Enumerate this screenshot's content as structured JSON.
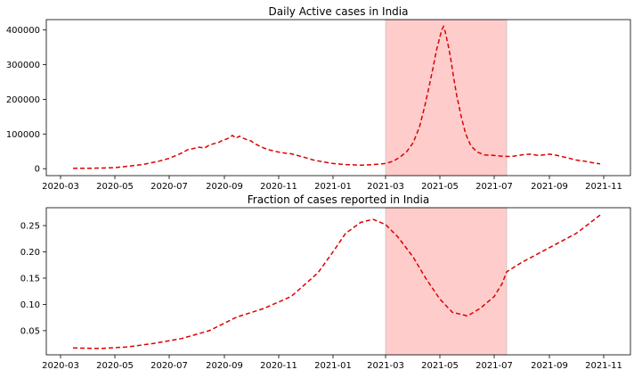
{
  "chart_data": [
    {
      "type": "line",
      "title": "Daily Active cases in India",
      "xlabel": "",
      "ylabel": "",
      "x_tick_labels": [
        "2020-03",
        "2020-05",
        "2020-07",
        "2020-09",
        "2020-11",
        "2021-01",
        "2021-03",
        "2021-05",
        "2021-07",
        "2021-09",
        "2021-11"
      ],
      "y_tick_labels": [
        "0",
        "100000",
        "200000",
        "300000",
        "400000"
      ],
      "ylim": [
        -20000,
        430000
      ],
      "xlim": [
        "2020-02-14",
        "2021-12-01"
      ],
      "grid": false,
      "shaded_region": {
        "start": "2021-03-01",
        "end": "2021-07-15",
        "color": "#ff9999"
      },
      "series": [
        {
          "color": "#dd0000",
          "style": "dashed",
          "x": [
            "2020-03-15",
            "2020-04-01",
            "2020-05-01",
            "2020-06-01",
            "2020-06-20",
            "2020-07-01",
            "2020-07-15",
            "2020-07-22",
            "2020-07-28",
            "2020-08-03",
            "2020-08-10",
            "2020-08-15",
            "2020-08-20",
            "2020-08-25",
            "2020-08-30",
            "2020-09-03",
            "2020-09-07",
            "2020-09-10",
            "2020-09-14",
            "2020-09-18",
            "2020-09-22",
            "2020-09-26",
            "2020-10-01",
            "2020-10-05",
            "2020-10-10",
            "2020-10-15",
            "2020-10-20",
            "2020-10-25",
            "2020-11-01",
            "2020-11-08",
            "2020-11-15",
            "2020-11-22",
            "2020-12-01",
            "2020-12-10",
            "2020-12-20",
            "2021-01-01",
            "2021-01-15",
            "2021-02-01",
            "2021-02-15",
            "2021-03-01",
            "2021-03-10",
            "2021-03-18",
            "2021-03-25",
            "2021-04-01",
            "2021-04-08",
            "2021-04-14",
            "2021-04-20",
            "2021-04-24",
            "2021-04-27",
            "2021-04-30",
            "2021-05-03",
            "2021-05-05",
            "2021-05-07",
            "2021-05-10",
            "2021-05-13",
            "2021-05-16",
            "2021-05-20",
            "2021-05-25",
            "2021-05-30",
            "2021-06-05",
            "2021-06-12",
            "2021-06-20",
            "2021-07-01",
            "2021-07-10",
            "2021-07-20",
            "2021-08-01",
            "2021-08-10",
            "2021-08-20",
            "2021-09-01",
            "2021-09-10",
            "2021-09-20",
            "2021-10-01",
            "2021-10-10",
            "2021-10-20",
            "2021-10-28"
          ],
          "values": [
            1000,
            1200,
            3000,
            12000,
            22000,
            30000,
            45000,
            55000,
            58000,
            62000,
            60000,
            68000,
            72000,
            75000,
            82000,
            85000,
            90000,
            96000,
            88000,
            94000,
            88000,
            84000,
            80000,
            72000,
            66000,
            60000,
            55000,
            52000,
            48000,
            45000,
            43000,
            38000,
            32000,
            25000,
            20000,
            15000,
            12000,
            10000,
            12000,
            15000,
            22000,
            35000,
            50000,
            75000,
            120000,
            180000,
            250000,
            300000,
            340000,
            370000,
            400000,
            410000,
            395000,
            360000,
            320000,
            270000,
            210000,
            150000,
            100000,
            65000,
            48000,
            40000,
            38000,
            36000,
            35000,
            40000,
            42000,
            38000,
            42000,
            38000,
            32000,
            25000,
            22000,
            17000,
            14000
          ]
        }
      ]
    },
    {
      "type": "line",
      "title": "Fraction of cases reported in India",
      "xlabel": "",
      "ylabel": "",
      "x_tick_labels": [
        "2020-03",
        "2020-05",
        "2020-07",
        "2020-09",
        "2020-11",
        "2021-01",
        "2021-03",
        "2021-05",
        "2021-07",
        "2021-09",
        "2021-11"
      ],
      "y_tick_labels": [
        "0.05",
        "0.10",
        "0.15",
        "0.20",
        "0.25"
      ],
      "ylim": [
        0.004,
        0.284
      ],
      "xlim": [
        "2020-02-14",
        "2021-12-01"
      ],
      "grid": false,
      "shaded_region": {
        "start": "2021-03-01",
        "end": "2021-07-15",
        "color": "#ff9999"
      },
      "series": [
        {
          "color": "#dd0000",
          "style": "dashed",
          "x": [
            "2020-03-15",
            "2020-04-15",
            "2020-05-15",
            "2020-06-15",
            "2020-07-15",
            "2020-08-15",
            "2020-09-15",
            "2020-10-15",
            "2020-11-15",
            "2020-12-15",
            "2021-01-01",
            "2021-01-15",
            "2021-02-01",
            "2021-02-15",
            "2021-03-01",
            "2021-03-15",
            "2021-04-01",
            "2021-04-15",
            "2021-05-01",
            "2021-05-15",
            "2021-06-01",
            "2021-06-15",
            "2021-07-01",
            "2021-07-10",
            "2021-07-15",
            "2021-08-01",
            "2021-09-01",
            "2021-10-01",
            "2021-10-28"
          ],
          "values": [
            0.017,
            0.016,
            0.019,
            0.026,
            0.035,
            0.05,
            0.076,
            0.092,
            0.115,
            0.16,
            0.2,
            0.235,
            0.256,
            0.262,
            0.252,
            0.228,
            0.19,
            0.15,
            0.11,
            0.085,
            0.078,
            0.092,
            0.115,
            0.14,
            0.162,
            0.18,
            0.208,
            0.235,
            0.27
          ]
        }
      ]
    }
  ]
}
